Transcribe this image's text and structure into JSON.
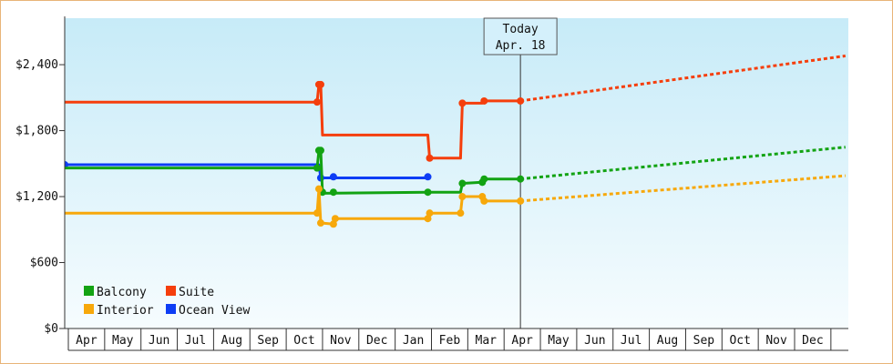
{
  "chart_data": {
    "type": "line",
    "title": "",
    "xlabel": "",
    "ylabel": "",
    "ylim": [
      0,
      2650
    ],
    "y_ticks": [
      {
        "value": 0,
        "label": "$0"
      },
      {
        "value": 600,
        "label": "$600"
      },
      {
        "value": 1200,
        "label": "$1,200"
      },
      {
        "value": 1800,
        "label": "$1,800"
      },
      {
        "value": 2400,
        "label": "$2,400"
      }
    ],
    "x_months": [
      "Apr",
      "May",
      "Jun",
      "Jul",
      "Aug",
      "Sep",
      "Oct",
      "Nov",
      "Dec",
      "Jan",
      "Feb",
      "Mar",
      "Apr",
      "May",
      "Jun",
      "Jul",
      "Aug",
      "Sep",
      "Oct",
      "Nov",
      "Dec"
    ],
    "x_range_months": [
      0,
      21.5
    ],
    "grid": {
      "vertical": true,
      "horizontal": false
    },
    "background_gradient": [
      "#c7ebf8",
      "#f6fcfe"
    ],
    "today": {
      "label": "Today",
      "date": "Apr. 18",
      "x": 12.45
    },
    "legend": {
      "placement": "bottom-left",
      "items": [
        {
          "name": "Balcony",
          "color": "#13a313"
        },
        {
          "name": "Suite",
          "color": "#f53e0c"
        },
        {
          "name": "Interior",
          "color": "#f7a80b"
        },
        {
          "name": "Ocean View",
          "color": "#0d3df5"
        }
      ]
    },
    "series": [
      {
        "name": "Suite",
        "color": "#f53e0c",
        "points": [
          [
            -0.1,
            2060
          ],
          [
            6.85,
            2060
          ],
          [
            6.9,
            2220
          ],
          [
            6.95,
            2220
          ],
          [
            7.0,
            1760
          ],
          [
            9.9,
            1760
          ],
          [
            9.95,
            1550
          ],
          [
            10.8,
            1550
          ],
          [
            10.85,
            2050
          ],
          [
            11.4,
            2050
          ],
          [
            11.45,
            2070
          ],
          [
            12.45,
            2070
          ]
        ],
        "markers": [
          [
            6.85,
            2060
          ],
          [
            6.9,
            2220
          ],
          [
            6.95,
            2220
          ],
          [
            9.95,
            1550
          ],
          [
            10.85,
            2050
          ],
          [
            11.45,
            2070
          ],
          [
            12.45,
            2070
          ]
        ],
        "forecast": [
          [
            12.45,
            2070
          ],
          [
            21.4,
            2480
          ]
        ]
      },
      {
        "name": "Ocean View",
        "color": "#0d3df5",
        "points": [
          [
            -0.1,
            1490
          ],
          [
            6.9,
            1490
          ],
          [
            6.95,
            1370
          ],
          [
            9.9,
            1370
          ]
        ],
        "markers": [
          [
            -0.1,
            1490
          ],
          [
            6.95,
            1370
          ],
          [
            7.3,
            1380
          ],
          [
            9.9,
            1380
          ]
        ]
      },
      {
        "name": "Balcony",
        "color": "#13a313",
        "points": [
          [
            -0.1,
            1460
          ],
          [
            6.85,
            1460
          ],
          [
            6.9,
            1620
          ],
          [
            6.95,
            1620
          ],
          [
            7.0,
            1230
          ],
          [
            9.9,
            1240
          ],
          [
            10.8,
            1240
          ],
          [
            10.85,
            1320
          ],
          [
            11.4,
            1330
          ],
          [
            11.45,
            1360
          ],
          [
            12.45,
            1360
          ]
        ],
        "markers": [
          [
            6.85,
            1460
          ],
          [
            6.9,
            1620
          ],
          [
            6.95,
            1620
          ],
          [
            7.0,
            1240
          ],
          [
            7.3,
            1240
          ],
          [
            9.9,
            1240
          ],
          [
            10.85,
            1320
          ],
          [
            11.4,
            1330
          ],
          [
            11.45,
            1360
          ],
          [
            12.45,
            1360
          ]
        ],
        "forecast": [
          [
            12.45,
            1360
          ],
          [
            21.4,
            1650
          ]
        ]
      },
      {
        "name": "Interior",
        "color": "#f7a80b",
        "points": [
          [
            -0.1,
            1050
          ],
          [
            6.85,
            1050
          ],
          [
            6.9,
            1270
          ],
          [
            6.95,
            960
          ],
          [
            7.3,
            950
          ],
          [
            7.35,
            1000
          ],
          [
            9.9,
            1000
          ],
          [
            9.95,
            1050
          ],
          [
            10.8,
            1050
          ],
          [
            10.85,
            1200
          ],
          [
            11.4,
            1200
          ],
          [
            11.45,
            1160
          ],
          [
            12.45,
            1160
          ]
        ],
        "markers": [
          [
            6.85,
            1050
          ],
          [
            6.9,
            1270
          ],
          [
            6.95,
            960
          ],
          [
            7.3,
            950
          ],
          [
            7.35,
            1000
          ],
          [
            9.9,
            1000
          ],
          [
            9.95,
            1050
          ],
          [
            10.8,
            1050
          ],
          [
            10.85,
            1200
          ],
          [
            11.4,
            1200
          ],
          [
            11.45,
            1160
          ],
          [
            12.45,
            1160
          ]
        ],
        "forecast": [
          [
            12.45,
            1160
          ],
          [
            21.4,
            1390
          ]
        ]
      }
    ]
  }
}
